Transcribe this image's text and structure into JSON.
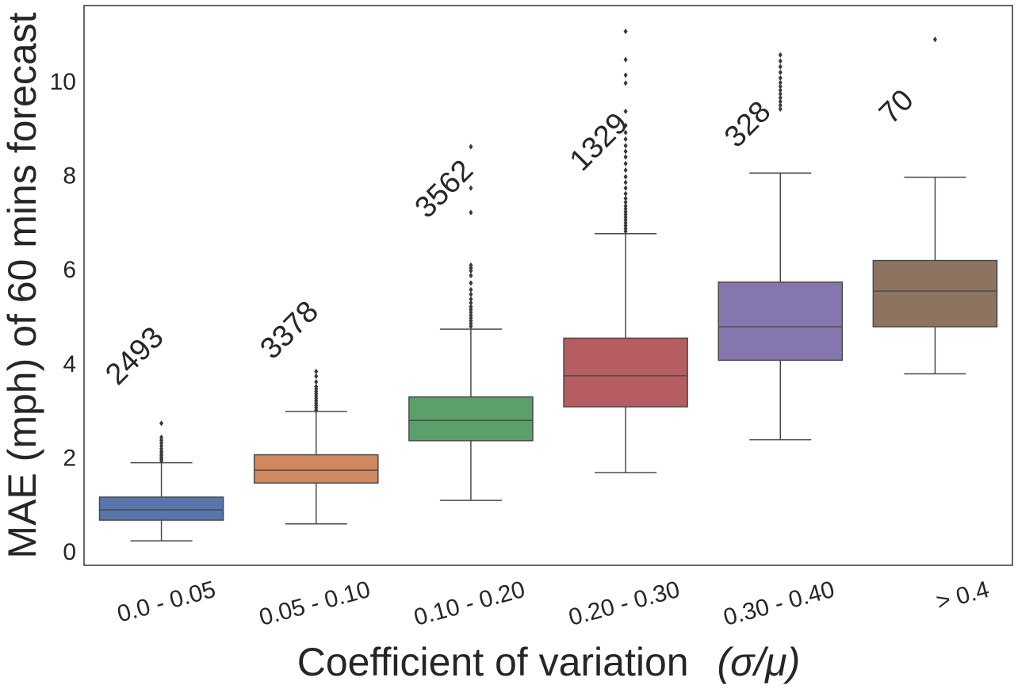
{
  "chart_data": {
    "type": "box",
    "title": "",
    "xlabel": "Coefficient of variation",
    "xlabel_math": "(σ/μ)",
    "ylabel": "MAE (mph) of 60 mins forecast",
    "ylim": [
      -0.3,
      11.6
    ],
    "yticks": [
      0,
      2,
      4,
      6,
      8,
      10
    ],
    "grid": false,
    "categories": [
      "0.0 - 0.05",
      "0.05 - 0.10",
      "0.10 - 0.20",
      "0.20 - 0.30",
      "0.30 - 0.40",
      "> 0.4"
    ],
    "counts": [
      "2493",
      "3378",
      "3562",
      "1329",
      "328",
      "70"
    ],
    "colors": [
      "#5875AC",
      "#D1885F",
      "#5C9F6B",
      "#B55D61",
      "#8577AD",
      "#8C7460"
    ],
    "boxes": [
      {
        "whisker_low": 0.22,
        "q1": 0.66,
        "median": 0.88,
        "q3": 1.15,
        "whisker_high": 1.88,
        "outliers": [
          1.92,
          1.96,
          2.0,
          2.04,
          2.08,
          2.12,
          2.18,
          2.24,
          2.3,
          2.36,
          2.42,
          2.72
        ]
      },
      {
        "whisker_low": 0.58,
        "q1": 1.45,
        "median": 1.72,
        "q3": 2.05,
        "whisker_high": 2.97,
        "outliers": [
          3.0,
          3.05,
          3.1,
          3.15,
          3.2,
          3.25,
          3.3,
          3.35,
          3.4,
          3.45,
          3.5,
          3.6,
          3.72,
          3.82
        ]
      },
      {
        "whisker_low": 1.08,
        "q1": 2.35,
        "median": 2.78,
        "q3": 3.28,
        "whisker_high": 4.72,
        "outliers": [
          4.78,
          4.84,
          4.9,
          4.96,
          5.02,
          5.08,
          5.14,
          5.2,
          5.28,
          5.36,
          5.46,
          5.56,
          5.7,
          5.86,
          5.96,
          6.02,
          6.08,
          7.2,
          7.72,
          8.6
        ]
      },
      {
        "whisker_low": 1.67,
        "q1": 3.07,
        "median": 3.73,
        "q3": 4.53,
        "whisker_high": 6.75,
        "outliers": [
          6.8,
          6.86,
          6.92,
          6.98,
          7.04,
          7.1,
          7.16,
          7.22,
          7.28,
          7.34,
          7.42,
          7.5,
          7.6,
          7.72,
          7.84,
          7.96,
          8.1,
          8.24,
          8.38,
          8.5,
          8.62,
          8.76,
          8.9,
          9.05,
          9.35,
          9.95,
          10.12,
          10.45,
          11.05
        ]
      },
      {
        "whisker_low": 2.37,
        "q1": 4.06,
        "median": 4.77,
        "q3": 5.72,
        "whisker_high": 8.04,
        "outliers": [
          9.4,
          9.48,
          9.56,
          9.64,
          9.72,
          9.8,
          9.88,
          9.96,
          10.06,
          10.18,
          10.3,
          10.42,
          10.55
        ]
      },
      {
        "whisker_low": 3.77,
        "q1": 4.77,
        "median": 5.53,
        "q3": 6.18,
        "whisker_high": 7.95,
        "outliers": [
          10.88
        ]
      }
    ]
  }
}
